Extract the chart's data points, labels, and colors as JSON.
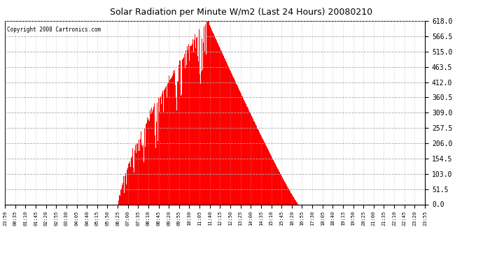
{
  "title": "Solar Radiation per Minute W/m2 (Last 24 Hours) 20080210",
  "copyright": "Copyright 2008 Cartronics.com",
  "bar_color": "#FF0000",
  "background_color": "#FFFFFF",
  "grid_color": "#AAAAAA",
  "dashed_line_color": "#FF0000",
  "ylim": [
    0,
    618.0
  ],
  "yticks": [
    0.0,
    51.5,
    103.0,
    154.5,
    206.0,
    257.5,
    309.0,
    360.5,
    412.0,
    463.5,
    515.0,
    566.5,
    618.0
  ],
  "x_tick_labels": [
    "23:59",
    "00:35",
    "01:10",
    "01:45",
    "02:20",
    "02:55",
    "03:30",
    "04:05",
    "04:40",
    "05:15",
    "05:50",
    "06:25",
    "07:00",
    "07:35",
    "08:10",
    "08:45",
    "09:20",
    "09:55",
    "10:30",
    "11:05",
    "11:40",
    "12:15",
    "12:50",
    "13:25",
    "14:00",
    "14:35",
    "15:10",
    "15:45",
    "16:20",
    "16:55",
    "17:30",
    "18:05",
    "18:40",
    "19:15",
    "19:50",
    "20:25",
    "21:00",
    "21:35",
    "22:10",
    "22:45",
    "23:20",
    "23:55"
  ],
  "sunrise_min": 390,
  "sunset_min": 1005,
  "peak_min": 695,
  "max_val": 618.0,
  "seed": 7
}
